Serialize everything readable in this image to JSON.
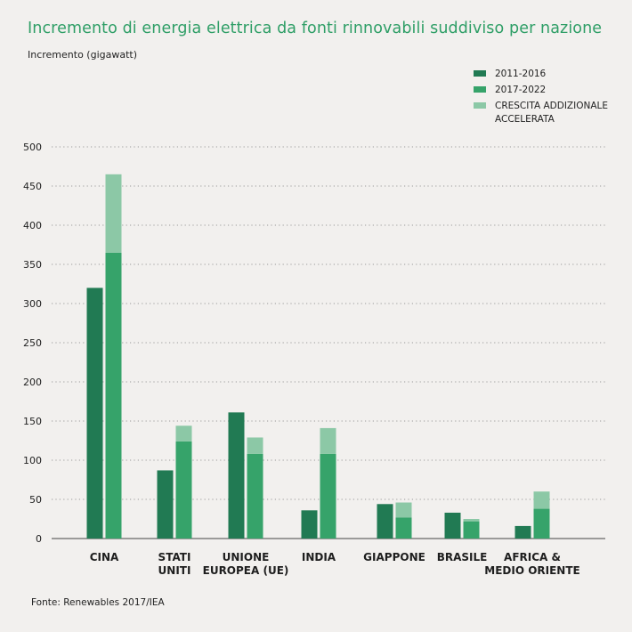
{
  "title": "Incremento di energia elettrica da fonti rinnovabili suddiviso per nazione",
  "source": "Fonte: Renewables 2017/IEA",
  "colors": {
    "s2011": "#217a53",
    "s2017": "#36a36a",
    "accelerated": "#8cc8a6",
    "title": "#2e9e66"
  },
  "chart_data": {
    "type": "bar",
    "stacked_second_bar": true,
    "title": "Incremento di energia elettrica da fonti rinnovabili suddiviso per nazione",
    "ylabel": "Incremento (gigawatt)",
    "ylim": [
      0,
      500
    ],
    "yticks": [
      "0",
      "50",
      "100",
      "150",
      "200",
      "250",
      "300",
      "350",
      "400",
      "450",
      "500"
    ],
    "grid": "dotted horizontal",
    "legend_position": "top-right",
    "categories": [
      [
        "CINA"
      ],
      [
        "STATI",
        "UNITI"
      ],
      [
        "UNIONE",
        "EUROPEA (UE)"
      ],
      [
        "INDIA"
      ],
      [
        "GIAPPONE"
      ],
      [
        "BRASILE"
      ],
      [
        "AFRICA &",
        "MEDIO ORIENTE"
      ]
    ],
    "series": [
      {
        "name": "2011-2016",
        "values": [
          320,
          87,
          161,
          36,
          44,
          33,
          16
        ]
      },
      {
        "name": "2017-2022",
        "values": [
          365,
          124,
          108,
          108,
          27,
          22,
          38
        ]
      },
      {
        "name": "CRESCITA ADDIZIONALE ACCELERATA",
        "values": [
          100,
          20,
          21,
          33,
          19,
          3,
          22
        ]
      }
    ]
  },
  "legend": [
    {
      "lines": [
        "2011-2016"
      ],
      "color_key": "s2011"
    },
    {
      "lines": [
        "2017-2022"
      ],
      "color_key": "s2017"
    },
    {
      "lines": [
        "CRESCITA ADDIZIONALE",
        "ACCELERATA"
      ],
      "color_key": "accelerated"
    }
  ]
}
